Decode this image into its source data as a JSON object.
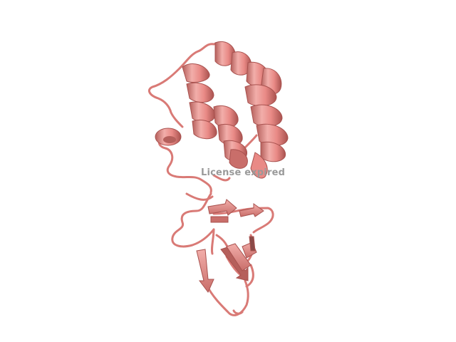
{
  "watermark_text": "License expired",
  "colors": {
    "background": "#ffffff",
    "ribbon": "#e98a86",
    "ribbon_light": "#f2aeaa",
    "ribbon_shadow": "#b5605c",
    "ribbon_dark": "#8a4a48",
    "watermark": "#9a9a9a"
  }
}
